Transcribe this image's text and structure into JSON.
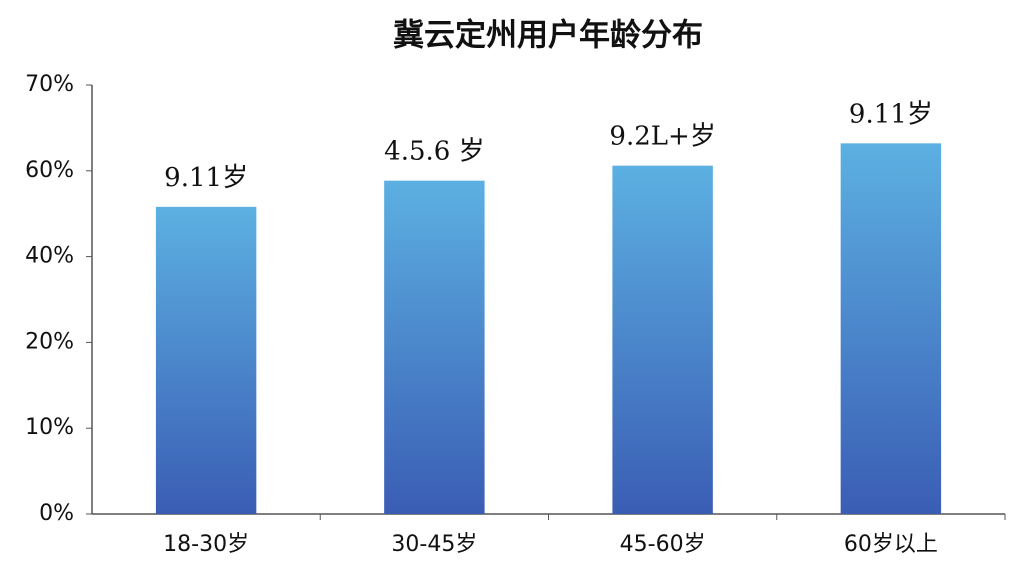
{
  "chart_data": {
    "type": "bar",
    "title": "冀云定州用户年龄分布",
    "categories": [
      "18-30岁",
      "30-45岁",
      "45-60岁",
      "60岁以上"
    ],
    "values": [
      51.6,
      57.7,
      60.6,
      63.2
    ],
    "annotations": [
      "9.11岁",
      "4.5.6 岁",
      "9.2L+岁",
      "9.11岁"
    ],
    "color": [
      "#5cb0e2",
      "#3a5db4"
    ],
    "ylim": [
      0,
      70
    ],
    "yticks": [
      {
        "value": 0,
        "label": "0%"
      },
      {
        "value": 10,
        "label": "10%"
      },
      {
        "value": 20,
        "label": "20%"
      },
      {
        "value": 40,
        "label": "40%"
      },
      {
        "value": 60,
        "label": "60%"
      },
      {
        "value": 70,
        "label": "70%"
      }
    ],
    "grid": false
  }
}
